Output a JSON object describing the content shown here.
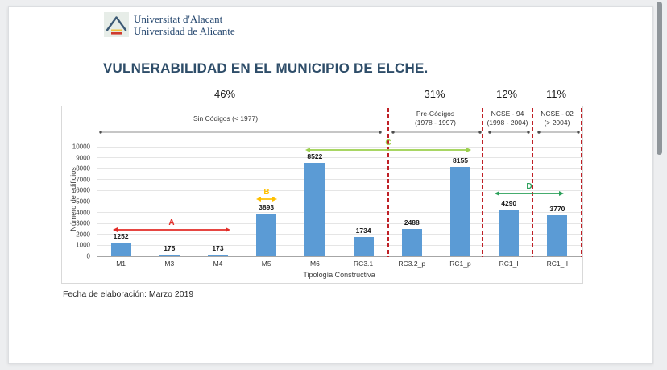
{
  "header": {
    "logo_line1": "Universitat d'Alacant",
    "logo_line2": "Universidad de Alicante"
  },
  "title": "VULNERABILIDAD EN EL MUNICIPIO DE ELCHE.",
  "footer": "Fecha de elaboración: Marzo 2019",
  "colors": {
    "title_text": "#2e4d69",
    "bar": "#5b9bd5",
    "divider": "#bf2026",
    "scrollbar_thumb": "#8f959a"
  },
  "chart_data": {
    "type": "bar",
    "title": "",
    "xlabel": "Tipología Constructiva",
    "ylabel": "Número de edificios",
    "ylim": [
      0,
      10000
    ],
    "ytick_step": 1000,
    "grid": true,
    "legend": "none",
    "bar_color": "#5b9bd5",
    "categories": [
      "M1",
      "M3",
      "M4",
      "M5",
      "M6",
      "RC3.1",
      "RC3.2_p",
      "RC1_p",
      "RC1_I",
      "RC1_II"
    ],
    "values": [
      1252,
      175,
      173,
      3893,
      8522,
      1734,
      2488,
      8155,
      4290,
      3770
    ],
    "sections": [
      {
        "lines": [
          "Sin Códigos (< 1977)"
        ],
        "percent": "46%",
        "categories": [
          "M1",
          "M3",
          "M4",
          "M5",
          "M6",
          "RC3.1"
        ]
      },
      {
        "lines": [
          "Pre-Códigos",
          "(1978 - 1997)"
        ],
        "percent": "31%",
        "categories": [
          "RC3.2_p",
          "RC1_p"
        ]
      },
      {
        "lines": [
          "NCSE - 94",
          "(1998 - 2004)"
        ],
        "percent": "12%",
        "categories": [
          "RC1_I"
        ]
      },
      {
        "lines": [
          "NCSE - 02",
          "(> 2004)"
        ],
        "percent": "11%",
        "categories": [
          "RC1_II"
        ]
      }
    ],
    "annotations": [
      {
        "label": "A",
        "color": "#e22b26",
        "span_categories": [
          "M1",
          "M4"
        ],
        "y_value": 2500
      },
      {
        "label": "B",
        "color": "#ffc000",
        "span_categories": [
          "M5",
          "M5"
        ],
        "y_value": 5300
      },
      {
        "label": "C",
        "color": "#9cd04e",
        "span_categories": [
          "M6",
          "RC1_p"
        ],
        "y_value": 9700
      },
      {
        "label": "D",
        "color": "#2ba05a",
        "span_categories": [
          "RC1_I",
          "RC1_II"
        ],
        "y_value": 5700
      }
    ],
    "divider_color": "#bf2026"
  }
}
